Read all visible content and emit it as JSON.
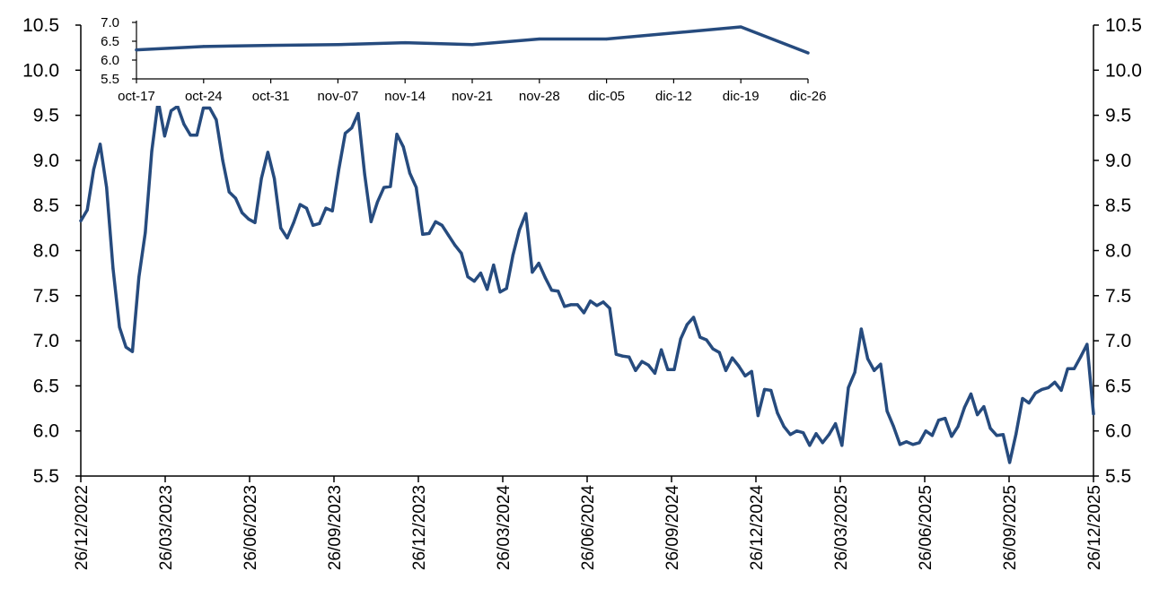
{
  "colors": {
    "line": "#264b7e",
    "axis": "#000000",
    "background": "#ffffff"
  },
  "chart_data": [
    {
      "type": "line",
      "title": "",
      "xlabel": "",
      "ylabel": "",
      "grid": false,
      "ylim": [
        5.5,
        10.5
      ],
      "yticks": [
        "5.5",
        "6.0",
        "6.5",
        "7.0",
        "7.5",
        "8.0",
        "8.5",
        "9.0",
        "9.5",
        "10.0",
        "10.5"
      ],
      "right_axis_duplicate": true,
      "xticks": [
        "26/12/2022",
        "26/03/2023",
        "26/06/2023",
        "26/09/2023",
        "26/12/2023",
        "26/03/2024",
        "26/06/2024",
        "26/09/2024",
        "26/12/2024",
        "26/03/2025",
        "26/06/2025",
        "26/09/2025",
        "26/12/2025"
      ],
      "x_start": "26/12/2022",
      "x_end": "26/12/2025",
      "x_frequency": "weekly",
      "series": [
        {
          "values": [
            8.33,
            8.45,
            8.9,
            9.18,
            8.7,
            7.8,
            7.15,
            6.93,
            6.88,
            7.7,
            8.2,
            9.1,
            9.66,
            9.27,
            9.55,
            9.6,
            9.4,
            9.28,
            9.28,
            9.58,
            9.58,
            9.45,
            9.0,
            8.65,
            8.58,
            8.42,
            8.35,
            8.31,
            8.8,
            9.09,
            8.8,
            8.25,
            8.14,
            8.31,
            8.51,
            8.47,
            8.28,
            8.3,
            8.47,
            8.44,
            8.9,
            9.3,
            9.36,
            9.52,
            8.85,
            8.32,
            8.54,
            8.7,
            8.71,
            9.29,
            9.15,
            8.86,
            8.7,
            8.18,
            8.19,
            8.32,
            8.28,
            8.17,
            8.06,
            7.97,
            7.71,
            7.66,
            7.75,
            7.57,
            7.84,
            7.54,
            7.58,
            7.95,
            8.23,
            8.41,
            7.76,
            7.86,
            7.7,
            7.56,
            7.55,
            7.38,
            7.4,
            7.4,
            7.31,
            7.44,
            7.39,
            7.43,
            7.36,
            6.85,
            6.83,
            6.82,
            6.67,
            6.77,
            6.73,
            6.64,
            6.9,
            6.68,
            6.68,
            7.02,
            7.18,
            7.26,
            7.04,
            7.01,
            6.91,
            6.87,
            6.67,
            6.81,
            6.72,
            6.61,
            6.66,
            6.17,
            6.46,
            6.45,
            6.2,
            6.05,
            5.96,
            6.0,
            5.98,
            5.84,
            5.97,
            5.87,
            5.96,
            6.08,
            5.84,
            6.48,
            6.65,
            7.13,
            6.8,
            6.67,
            6.74,
            6.22,
            6.05,
            5.85,
            5.88,
            5.85,
            5.87,
            6.0,
            5.95,
            6.12,
            6.14,
            5.94,
            6.05,
            6.26,
            6.41,
            6.18,
            6.27,
            6.03,
            5.95,
            5.96,
            5.65,
            5.97,
            6.36,
            6.31,
            6.42,
            6.46,
            6.48,
            6.54,
            6.45,
            6.69,
            6.69,
            6.82,
            6.96,
            6.19
          ]
        }
      ]
    },
    {
      "type": "line",
      "title": "",
      "xlabel": "",
      "ylabel": "",
      "grid": false,
      "ylim": [
        5.5,
        7.0
      ],
      "yticks": [
        "5.5",
        "6.0",
        "6.5",
        "7.0"
      ],
      "categories": [
        "oct-17",
        "oct-24",
        "oct-31",
        "nov-07",
        "nov-14",
        "nov-21",
        "nov-28",
        "dic-05",
        "dic-12",
        "dic-19",
        "dic-26"
      ],
      "series": [
        {
          "values": [
            6.27,
            6.36,
            6.39,
            6.41,
            6.46,
            6.41,
            6.56,
            6.56,
            6.72,
            6.88,
            6.19
          ]
        }
      ]
    }
  ]
}
